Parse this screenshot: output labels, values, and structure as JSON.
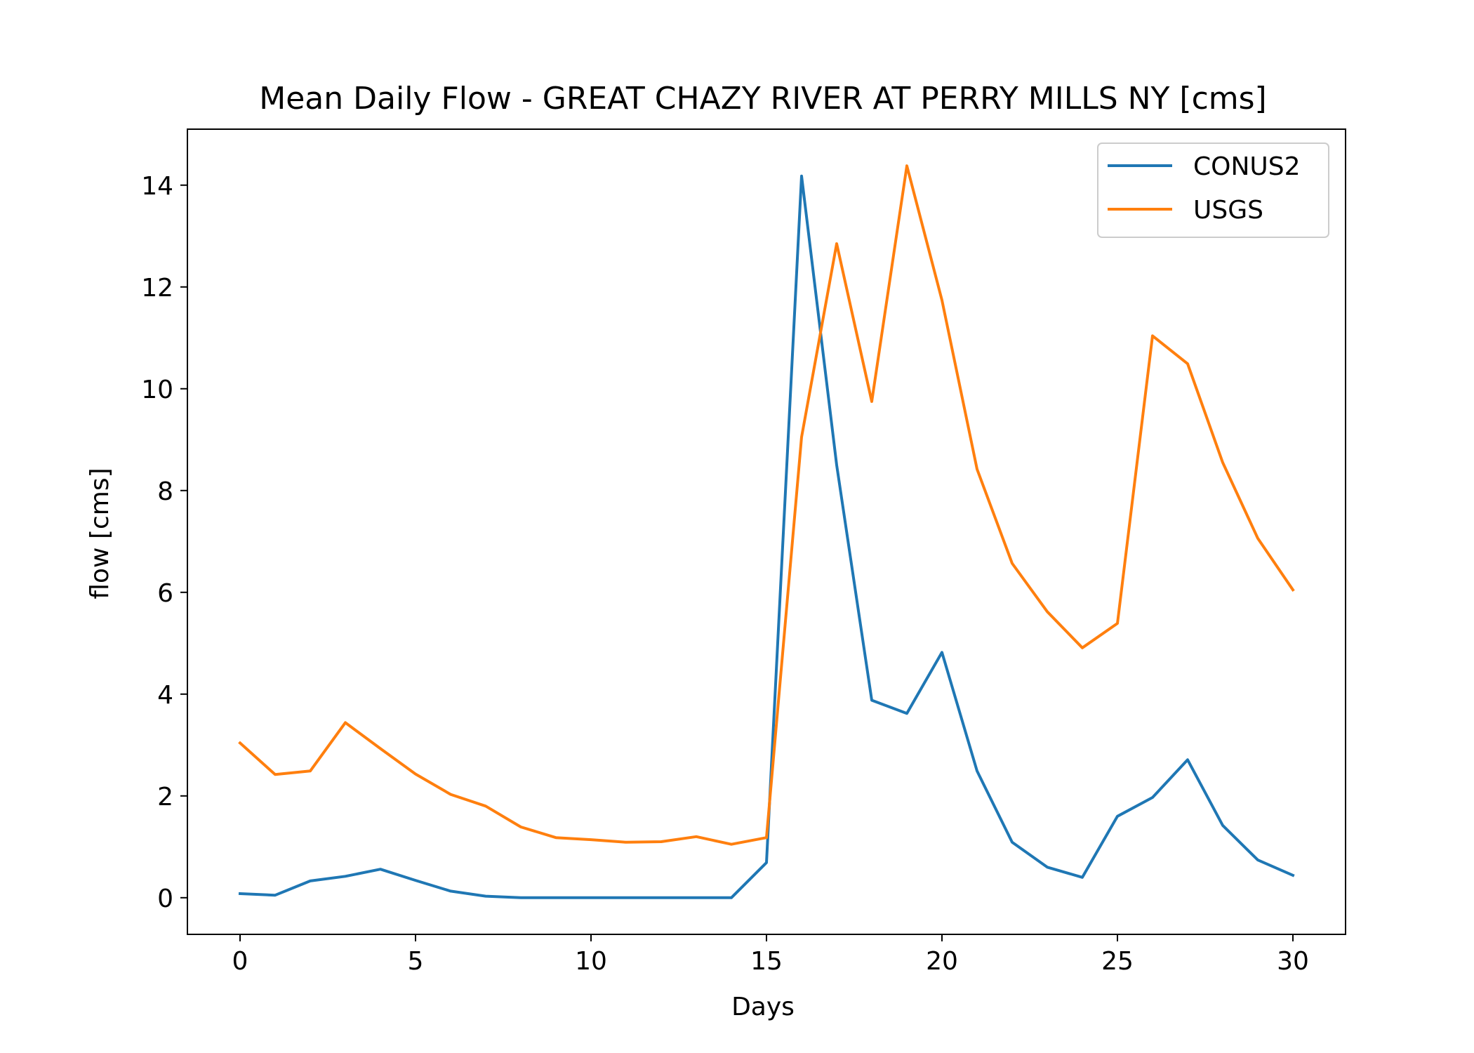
{
  "chart_data": {
    "type": "line",
    "title": "Mean Daily Flow - GREAT CHAZY RIVER AT PERRY MILLS NY [cms]",
    "xlabel": "Days",
    "ylabel": "flow [cms]",
    "xlim": [
      -1.5,
      31.5
    ],
    "ylim": [
      -0.72,
      15.1
    ],
    "xticks": [
      0,
      5,
      10,
      15,
      20,
      25,
      30
    ],
    "yticks": [
      0,
      2,
      4,
      6,
      8,
      10,
      12,
      14
    ],
    "grid": false,
    "legend": "top-right",
    "x": [
      0,
      1,
      2,
      3,
      4,
      5,
      6,
      7,
      8,
      9,
      10,
      11,
      12,
      13,
      14,
      15,
      16,
      17,
      18,
      19,
      20,
      21,
      22,
      23,
      24,
      25,
      26,
      27,
      28,
      29,
      30
    ],
    "series": [
      {
        "name": "CONUS2",
        "color": "#1f77b4",
        "values": [
          0.08,
          0.05,
          0.33,
          0.42,
          0.56,
          0.34,
          0.13,
          0.03,
          0.0,
          0.0,
          0.0,
          0.0,
          0.0,
          0.0,
          0.0,
          0.69,
          14.18,
          8.5,
          3.88,
          3.62,
          4.82,
          2.49,
          1.09,
          0.6,
          0.4,
          1.6,
          1.97,
          2.71,
          1.42,
          0.74,
          0.44
        ]
      },
      {
        "name": "USGS",
        "color": "#ff7f0e",
        "values": [
          3.04,
          2.42,
          2.49,
          3.44,
          2.93,
          2.43,
          2.03,
          1.8,
          1.39,
          1.18,
          1.14,
          1.09,
          1.1,
          1.2,
          1.05,
          1.18,
          9.05,
          12.85,
          9.75,
          14.38,
          11.74,
          8.42,
          6.57,
          5.62,
          4.91,
          5.39,
          11.04,
          10.49,
          8.55,
          7.06,
          6.05
        ]
      }
    ]
  }
}
